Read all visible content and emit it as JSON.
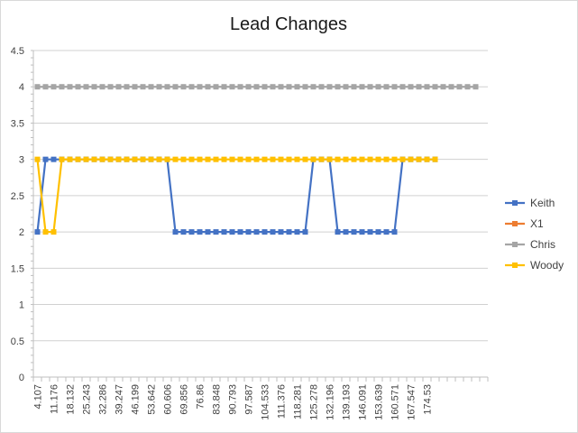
{
  "chart_data": {
    "type": "line",
    "title": "Lead Changes",
    "xlabel": "",
    "ylabel": "",
    "ylim": [
      0,
      4.5
    ],
    "yticks": [
      "0",
      "0.5",
      "1",
      "1.5",
      "2",
      "2.5",
      "3",
      "3.5",
      "4",
      "4.5"
    ],
    "x_tick_labels": [
      "4.107",
      "11.176",
      "18.132",
      "25.243",
      "32.286",
      "39.247",
      "46.199",
      "53.642",
      "60.606",
      "69.856",
      "76.86",
      "83.848",
      "90.793",
      "97.587",
      "104.533",
      "111.376",
      "118.281",
      "125.278",
      "132.196",
      "139.193",
      "146.091",
      "153.639",
      "160.571",
      "167.547",
      "174.53"
    ],
    "grid": "horizontal",
    "legend_position": "right",
    "series": [
      {
        "name": "Keith",
        "color": "#4472c4",
        "values": [
          2,
          3,
          3,
          3,
          3,
          3,
          3,
          3,
          3,
          3,
          3,
          3,
          3,
          3,
          3,
          3,
          3,
          2,
          2,
          2,
          2,
          2,
          2,
          2,
          2,
          2,
          2,
          2,
          2,
          2,
          2,
          2,
          2,
          2,
          3,
          3,
          3,
          2,
          2,
          2,
          2,
          2,
          2,
          2,
          2,
          3,
          3,
          3,
          3,
          3
        ]
      },
      {
        "name": "X1",
        "color": "#ed7d31",
        "values": []
      },
      {
        "name": "Chris",
        "color": "#a5a5a5",
        "values": [
          4,
          4,
          4,
          4,
          4,
          4,
          4,
          4,
          4,
          4,
          4,
          4,
          4,
          4,
          4,
          4,
          4,
          4,
          4,
          4,
          4,
          4,
          4,
          4,
          4,
          4,
          4,
          4,
          4,
          4,
          4,
          4,
          4,
          4,
          4,
          4,
          4,
          4,
          4,
          4,
          4,
          4,
          4,
          4,
          4,
          4,
          4,
          4,
          4,
          4,
          4,
          4,
          4,
          4,
          4
        ]
      },
      {
        "name": "Woody",
        "color": "#ffc000",
        "values": [
          3,
          2,
          2,
          3,
          3,
          3,
          3,
          3,
          3,
          3,
          3,
          3,
          3,
          3,
          3,
          3,
          3,
          3,
          3,
          3,
          3,
          3,
          3,
          3,
          3,
          3,
          3,
          3,
          3,
          3,
          3,
          3,
          3,
          3,
          3,
          3,
          3,
          3,
          3,
          3,
          3,
          3,
          3,
          3,
          3,
          3,
          3,
          3,
          3,
          3
        ]
      }
    ]
  }
}
